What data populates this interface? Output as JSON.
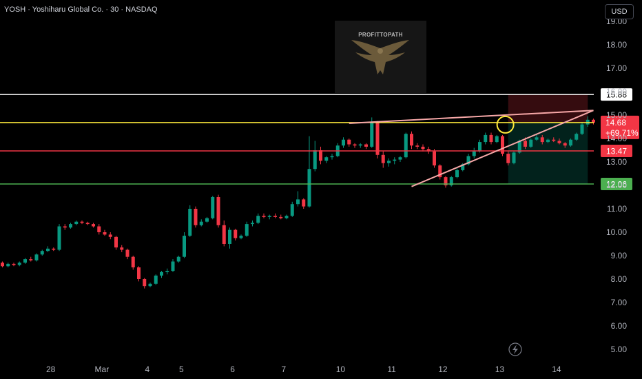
{
  "header": {
    "title": "YOSH · Yoshiharu Global Co. · 30 · NASDAQ",
    "currency": "USD"
  },
  "watermark": {
    "label": "PROFITTOPATH"
  },
  "colors": {
    "up": "#089981",
    "down": "#f23645",
    "background": "#000000",
    "white_level": "#ffffff",
    "yellow_level": "#ffeb3b",
    "red_level": "#f23645",
    "green_level": "#4caf50",
    "trendline": "#f7a8a8",
    "highlight_circle": "#ffeb3b"
  },
  "chart_data": {
    "type": "candlestick",
    "y_axis": {
      "ticks": [
        5.0,
        6.0,
        7.0,
        8.0,
        9.0,
        10.0,
        11.0,
        12.0,
        13.0,
        14.0,
        15.0,
        16.0,
        17.0,
        18.0,
        19.0
      ],
      "range": [
        4.6,
        19.2
      ]
    },
    "x_axis": {
      "ticks": [
        {
          "label": "28",
          "t": 8.5
        },
        {
          "label": "Mar",
          "t": 17.5
        },
        {
          "label": "4",
          "t": 25.5
        },
        {
          "label": "5",
          "t": 31.5
        },
        {
          "label": "6",
          "t": 40.5
        },
        {
          "label": "7",
          "t": 49.5
        },
        {
          "label": "10",
          "t": 59.5
        },
        {
          "label": "11",
          "t": 68.5
        },
        {
          "label": "12",
          "t": 77.5
        },
        {
          "label": "13",
          "t": 87.5
        },
        {
          "label": "14",
          "t": 97.5
        }
      ],
      "range": [
        0,
        109
      ]
    },
    "candles": [
      [
        8.7,
        8.75,
        8.5,
        8.55
      ],
      [
        8.55,
        8.7,
        8.5,
        8.65
      ],
      [
        8.65,
        8.7,
        8.55,
        8.6
      ],
      [
        8.6,
        8.75,
        8.55,
        8.7
      ],
      [
        8.7,
        8.9,
        8.65,
        8.85
      ],
      [
        8.85,
        8.95,
        8.75,
        8.8
      ],
      [
        8.8,
        9.1,
        8.75,
        9.05
      ],
      [
        9.05,
        9.25,
        9.0,
        9.2
      ],
      [
        9.2,
        9.4,
        9.15,
        9.3
      ],
      [
        9.3,
        9.35,
        9.2,
        9.25
      ],
      [
        9.25,
        10.35,
        9.2,
        10.25
      ],
      [
        10.25,
        10.35,
        10.1,
        10.2
      ],
      [
        10.2,
        10.4,
        10.15,
        10.35
      ],
      [
        10.35,
        10.5,
        10.3,
        10.45
      ],
      [
        10.45,
        10.5,
        10.35,
        10.4
      ],
      [
        10.4,
        10.45,
        10.3,
        10.35
      ],
      [
        10.35,
        10.4,
        10.2,
        10.25
      ],
      [
        10.25,
        10.35,
        9.9,
        10.0
      ],
      [
        10.0,
        10.1,
        9.85,
        9.9
      ],
      [
        9.9,
        10.0,
        9.7,
        9.8
      ],
      [
        9.8,
        9.85,
        9.25,
        9.35
      ],
      [
        9.35,
        9.45,
        9.15,
        9.25
      ],
      [
        9.25,
        9.3,
        8.85,
        8.95
      ],
      [
        8.95,
        9.0,
        8.4,
        8.5
      ],
      [
        8.5,
        8.55,
        7.9,
        8.0
      ],
      [
        8.0,
        8.05,
        7.6,
        7.7
      ],
      [
        7.7,
        7.85,
        7.65,
        7.8
      ],
      [
        7.8,
        8.2,
        7.75,
        8.15
      ],
      [
        8.15,
        8.35,
        8.05,
        8.3
      ],
      [
        8.3,
        8.45,
        8.2,
        8.35
      ],
      [
        8.35,
        8.85,
        8.3,
        8.75
      ],
      [
        8.75,
        9.0,
        8.7,
        8.95
      ],
      [
        8.95,
        10.0,
        8.9,
        9.85
      ],
      [
        9.85,
        11.15,
        9.8,
        11.0
      ],
      [
        11.0,
        11.1,
        10.2,
        10.3
      ],
      [
        10.3,
        10.55,
        10.25,
        10.45
      ],
      [
        10.45,
        10.65,
        10.4,
        10.6
      ],
      [
        10.6,
        11.55,
        10.55,
        11.5
      ],
      [
        11.5,
        11.6,
        10.2,
        10.3
      ],
      [
        10.3,
        10.5,
        9.4,
        9.5
      ],
      [
        9.5,
        10.2,
        9.3,
        10.1
      ],
      [
        10.1,
        10.15,
        9.65,
        9.75
      ],
      [
        9.75,
        9.9,
        9.7,
        9.85
      ],
      [
        9.85,
        10.45,
        9.8,
        10.35
      ],
      [
        10.35,
        10.5,
        10.25,
        10.4
      ],
      [
        10.4,
        10.8,
        10.35,
        10.7
      ],
      [
        10.7,
        10.8,
        10.6,
        10.65
      ],
      [
        10.65,
        10.75,
        10.55,
        10.7
      ],
      [
        10.7,
        10.8,
        10.6,
        10.65
      ],
      [
        10.65,
        10.75,
        10.55,
        10.6
      ],
      [
        10.6,
        10.75,
        10.55,
        10.7
      ],
      [
        10.7,
        11.3,
        10.65,
        11.2
      ],
      [
        11.2,
        11.75,
        11.1,
        11.4
      ],
      [
        11.4,
        11.45,
        11.0,
        11.1
      ],
      [
        11.1,
        14.1,
        11.05,
        12.7
      ],
      [
        12.7,
        13.9,
        12.6,
        13.5
      ],
      [
        13.5,
        13.65,
        12.9,
        13.05
      ],
      [
        13.05,
        13.25,
        12.95,
        13.2
      ],
      [
        13.2,
        13.35,
        13.1,
        13.25
      ],
      [
        13.25,
        13.8,
        13.2,
        13.7
      ],
      [
        13.7,
        14.05,
        13.6,
        13.95
      ],
      [
        13.95,
        14.0,
        13.65,
        13.75
      ],
      [
        13.75,
        13.8,
        13.6,
        13.7
      ],
      [
        13.7,
        13.8,
        13.6,
        13.75
      ],
      [
        13.75,
        13.8,
        13.55,
        13.65
      ],
      [
        13.65,
        14.9,
        13.6,
        14.7
      ],
      [
        14.7,
        14.75,
        13.15,
        13.3
      ],
      [
        13.3,
        13.45,
        12.75,
        12.95
      ],
      [
        12.95,
        13.15,
        12.8,
        13.05
      ],
      [
        13.05,
        13.2,
        12.9,
        13.1
      ],
      [
        13.1,
        13.25,
        13.0,
        13.2
      ],
      [
        13.2,
        14.25,
        13.15,
        14.2
      ],
      [
        14.2,
        14.3,
        13.55,
        13.7
      ],
      [
        13.7,
        13.8,
        13.55,
        13.65
      ],
      [
        13.65,
        13.75,
        13.45,
        13.55
      ],
      [
        13.55,
        13.65,
        13.35,
        13.45
      ],
      [
        13.45,
        13.55,
        12.75,
        12.85
      ],
      [
        12.85,
        12.9,
        12.25,
        12.35
      ],
      [
        12.35,
        12.4,
        11.9,
        12.0
      ],
      [
        12.0,
        12.4,
        11.95,
        12.35
      ],
      [
        12.35,
        12.75,
        12.3,
        12.65
      ],
      [
        12.65,
        12.95,
        12.6,
        12.9
      ],
      [
        12.9,
        13.35,
        12.85,
        13.25
      ],
      [
        13.25,
        13.6,
        13.15,
        13.45
      ],
      [
        13.45,
        13.95,
        13.4,
        13.85
      ],
      [
        13.85,
        14.25,
        13.75,
        14.15
      ],
      [
        14.15,
        14.25,
        13.75,
        13.85
      ],
      [
        13.85,
        14.15,
        13.8,
        14.1
      ],
      [
        14.1,
        14.15,
        13.25,
        13.35
      ],
      [
        13.35,
        13.45,
        12.85,
        12.95
      ],
      [
        12.95,
        13.45,
        12.9,
        13.4
      ],
      [
        13.4,
        13.95,
        13.35,
        13.9
      ],
      [
        13.9,
        14.05,
        13.55,
        13.65
      ],
      [
        13.65,
        14.0,
        13.6,
        13.95
      ],
      [
        13.95,
        14.15,
        13.9,
        14.05
      ],
      [
        14.05,
        14.15,
        13.75,
        13.85
      ],
      [
        13.85,
        14.0,
        13.8,
        13.95
      ],
      [
        13.95,
        14.05,
        13.85,
        13.9
      ],
      [
        13.9,
        14.0,
        13.75,
        13.8
      ],
      [
        13.8,
        13.85,
        13.6,
        13.7
      ],
      [
        13.7,
        14.0,
        13.65,
        13.95
      ],
      [
        13.95,
        14.25,
        13.9,
        14.2
      ],
      [
        14.2,
        14.7,
        14.15,
        14.6
      ],
      [
        14.6,
        14.95,
        14.5,
        14.8
      ],
      [
        14.8,
        14.85,
        14.6,
        14.68
      ]
    ],
    "levels": [
      {
        "name": "resistance-white",
        "value": 15.88,
        "label": "15.88",
        "color": "#ffffff"
      },
      {
        "name": "current-yellow",
        "value": 14.68,
        "label": "14.68",
        "color": "#ffeb3b"
      },
      {
        "name": "level-red",
        "value": 13.47,
        "label": "13.47",
        "color": "#f23645"
      },
      {
        "name": "support-green",
        "value": 12.06,
        "label": "12.06",
        "color": "#4caf50"
      }
    ],
    "price_badge": {
      "price": "14.68",
      "change": "+69.71%"
    },
    "trendlines": [
      {
        "from": [
          61,
          14.65
        ],
        "to": [
          104,
          15.2
        ]
      },
      {
        "from": [
          72,
          11.95
        ],
        "to": [
          104,
          15.2
        ]
      }
    ],
    "risk_zone": {
      "t_start": 89,
      "t_end": 103,
      "top": 15.88,
      "entry": 14.68,
      "bottom": 12.06
    },
    "highlight": {
      "t": 88.5,
      "price": 14.68
    }
  }
}
